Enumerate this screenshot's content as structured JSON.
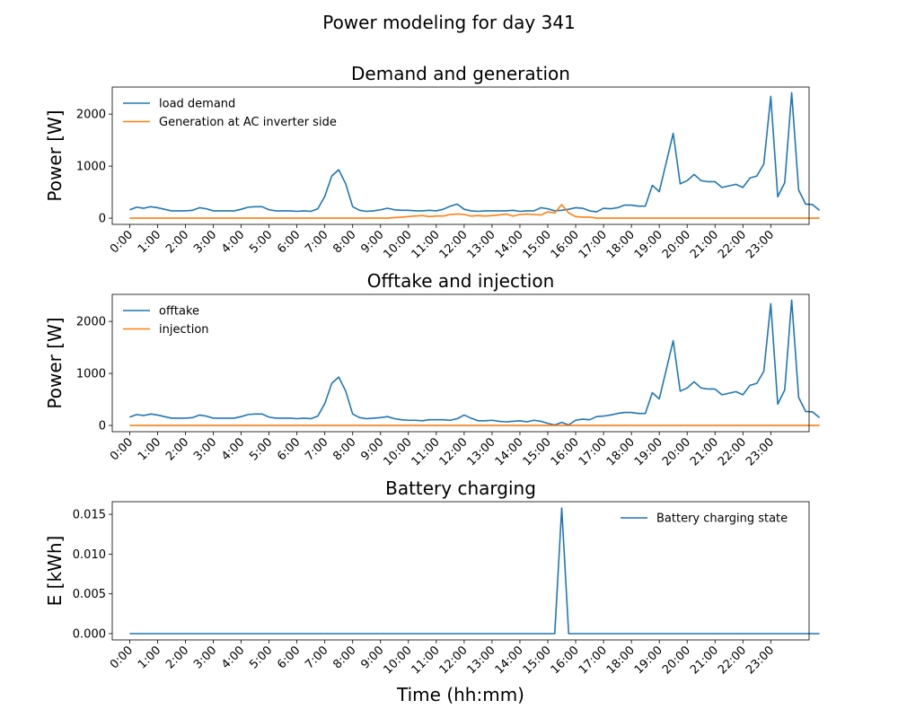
{
  "suptitle": "Power modeling for day 341",
  "colors": {
    "blue": "#1f77b4",
    "orange": "#ff7f0e"
  },
  "chart_data": [
    {
      "type": "line",
      "title": "Demand and generation",
      "ylabel": "Power [W]",
      "xlabel": "",
      "ylim": [
        -120,
        2520
      ],
      "yticks": [
        0,
        1000,
        2000
      ],
      "ytick_labels": [
        "0",
        "1000",
        "2000"
      ],
      "xlim": [
        -0.625,
        24.375
      ],
      "xticks": [
        "0:00",
        "1:00",
        "2:00",
        "3:00",
        "4:00",
        "5:00",
        "6:00",
        "7:00",
        "8:00",
        "9:00",
        "10:00",
        "11:00",
        "12:00",
        "13:00",
        "14:00",
        "15:00",
        "16:00",
        "17:00",
        "18:00",
        "19:00",
        "20:00",
        "21:00",
        "22:00",
        "23:00"
      ],
      "legend": "top-left",
      "series": [
        {
          "name": "load demand",
          "color": "#1f77b4",
          "values": [
            160,
            210,
            190,
            220,
            200,
            170,
            140,
            140,
            140,
            150,
            200,
            180,
            140,
            140,
            140,
            140,
            170,
            210,
            220,
            220,
            160,
            140,
            140,
            140,
            130,
            140,
            130,
            180,
            420,
            810,
            930,
            660,
            220,
            150,
            130,
            140,
            160,
            190,
            160,
            150,
            150,
            140,
            140,
            150,
            140,
            170,
            230,
            270,
            170,
            140,
            130,
            140,
            140,
            140,
            140,
            150,
            130,
            140,
            140,
            200,
            180,
            140,
            150,
            170,
            200,
            190,
            140,
            120,
            190,
            180,
            200,
            250,
            250,
            230,
            230,
            630,
            510,
            1070,
            1630,
            660,
            720,
            840,
            720,
            700,
            700,
            590,
            620,
            650,
            590,
            770,
            810,
            1040,
            2340,
            410,
            680,
            2410,
            540,
            270,
            260,
            150
          ]
        },
        {
          "name": "Generation at AC inverter side",
          "color": "#ff7f0e",
          "values": [
            0,
            0,
            0,
            0,
            0,
            0,
            0,
            0,
            0,
            0,
            0,
            0,
            0,
            0,
            0,
            0,
            0,
            0,
            0,
            0,
            0,
            0,
            0,
            0,
            0,
            0,
            0,
            0,
            0,
            0,
            0,
            0,
            0,
            0,
            0,
            0,
            0,
            0,
            10,
            20,
            30,
            40,
            50,
            30,
            40,
            40,
            70,
            80,
            70,
            40,
            50,
            40,
            50,
            60,
            80,
            40,
            70,
            80,
            70,
            60,
            120,
            100,
            260,
            100,
            30,
            20,
            20,
            0,
            0,
            0,
            0,
            0,
            0,
            0,
            0,
            0,
            0,
            0,
            0,
            0,
            0,
            0,
            0,
            0,
            0,
            0,
            0,
            0,
            0,
            0,
            0,
            0,
            0,
            0,
            0,
            0,
            0,
            0,
            0,
            0
          ]
        }
      ]
    },
    {
      "type": "line",
      "title": "Offtake and injection",
      "ylabel": "Power [W]",
      "xlabel": "",
      "ylim": [
        -120,
        2520
      ],
      "yticks": [
        0,
        1000,
        2000
      ],
      "ytick_labels": [
        "0",
        "1000",
        "2000"
      ],
      "xlim": [
        -0.625,
        24.375
      ],
      "xticks": [
        "0:00",
        "1:00",
        "2:00",
        "3:00",
        "4:00",
        "5:00",
        "6:00",
        "7:00",
        "8:00",
        "9:00",
        "10:00",
        "11:00",
        "12:00",
        "13:00",
        "14:00",
        "15:00",
        "16:00",
        "17:00",
        "18:00",
        "19:00",
        "20:00",
        "21:00",
        "22:00",
        "23:00"
      ],
      "legend": "top-left",
      "series": [
        {
          "name": "offtake",
          "color": "#1f77b4",
          "values": [
            160,
            210,
            190,
            220,
            200,
            170,
            140,
            140,
            140,
            150,
            200,
            180,
            140,
            140,
            140,
            140,
            170,
            210,
            220,
            220,
            160,
            140,
            140,
            140,
            130,
            140,
            130,
            180,
            420,
            810,
            930,
            660,
            220,
            150,
            130,
            140,
            150,
            170,
            130,
            110,
            100,
            100,
            90,
            110,
            110,
            110,
            100,
            130,
            200,
            140,
            90,
            90,
            100,
            80,
            70,
            80,
            90,
            70,
            100,
            80,
            40,
            10,
            60,
            10,
            100,
            120,
            110,
            170,
            180,
            200,
            230,
            250,
            250,
            230,
            230,
            630,
            510,
            1070,
            1630,
            660,
            720,
            840,
            720,
            700,
            700,
            590,
            620,
            650,
            590,
            770,
            810,
            1040,
            2340,
            410,
            680,
            2410,
            540,
            270,
            260,
            150
          ]
        },
        {
          "name": "injection",
          "color": "#ff7f0e",
          "values": [
            0,
            0,
            0,
            0,
            0,
            0,
            0,
            0,
            0,
            0,
            0,
            0,
            0,
            0,
            0,
            0,
            0,
            0,
            0,
            0,
            0,
            0,
            0,
            0,
            0,
            0,
            0,
            0,
            0,
            0,
            0,
            0,
            0,
            0,
            0,
            0,
            0,
            0,
            0,
            0,
            0,
            0,
            0,
            0,
            0,
            0,
            0,
            0,
            0,
            0,
            0,
            0,
            0,
            0,
            0,
            0,
            0,
            0,
            0,
            0,
            0,
            0,
            0,
            0,
            0,
            0,
            0,
            0,
            0,
            0,
            0,
            0,
            0,
            0,
            0,
            0,
            0,
            0,
            0,
            0,
            0,
            0,
            0,
            0,
            0,
            0,
            0,
            0,
            0,
            0,
            0,
            0,
            0,
            0,
            0,
            0,
            0,
            0,
            0,
            0
          ]
        }
      ]
    },
    {
      "type": "line",
      "title": "Battery charging",
      "ylabel": "E [kWh]",
      "xlabel": "Time (hh:mm)",
      "ylim": [
        -0.00079,
        0.01659
      ],
      "yticks": [
        0,
        0.005,
        0.01,
        0.015
      ],
      "ytick_labels": [
        "0.000",
        "0.005",
        "0.010",
        "0.015"
      ],
      "xlim": [
        -0.625,
        24.375
      ],
      "xticks": [
        "0:00",
        "1:00",
        "2:00",
        "3:00",
        "4:00",
        "5:00",
        "6:00",
        "7:00",
        "8:00",
        "9:00",
        "10:00",
        "11:00",
        "12:00",
        "13:00",
        "14:00",
        "15:00",
        "16:00",
        "17:00",
        "18:00",
        "19:00",
        "20:00",
        "21:00",
        "22:00",
        "23:00"
      ],
      "legend": "top-right",
      "series": [
        {
          "name": "Battery charging state",
          "color": "#1f77b4",
          "values": [
            0,
            0,
            0,
            0,
            0,
            0,
            0,
            0,
            0,
            0,
            0,
            0,
            0,
            0,
            0,
            0,
            0,
            0,
            0,
            0,
            0,
            0,
            0,
            0,
            0,
            0,
            0,
            0,
            0,
            0,
            0,
            0,
            0,
            0,
            0,
            0,
            0,
            0,
            0,
            0,
            0,
            0,
            0,
            0,
            0,
            0,
            0,
            0,
            0,
            0,
            0,
            0,
            0,
            0,
            0,
            0,
            0,
            0,
            0,
            0,
            0,
            0,
            0.0158,
            0,
            0,
            0,
            0,
            0,
            0,
            0,
            0,
            0,
            0,
            0,
            0,
            0,
            0,
            0,
            0,
            0,
            0,
            0,
            0,
            0,
            0,
            0,
            0,
            0,
            0,
            0,
            0,
            0,
            0,
            0,
            0,
            0,
            0,
            0,
            0,
            0
          ]
        }
      ]
    }
  ]
}
